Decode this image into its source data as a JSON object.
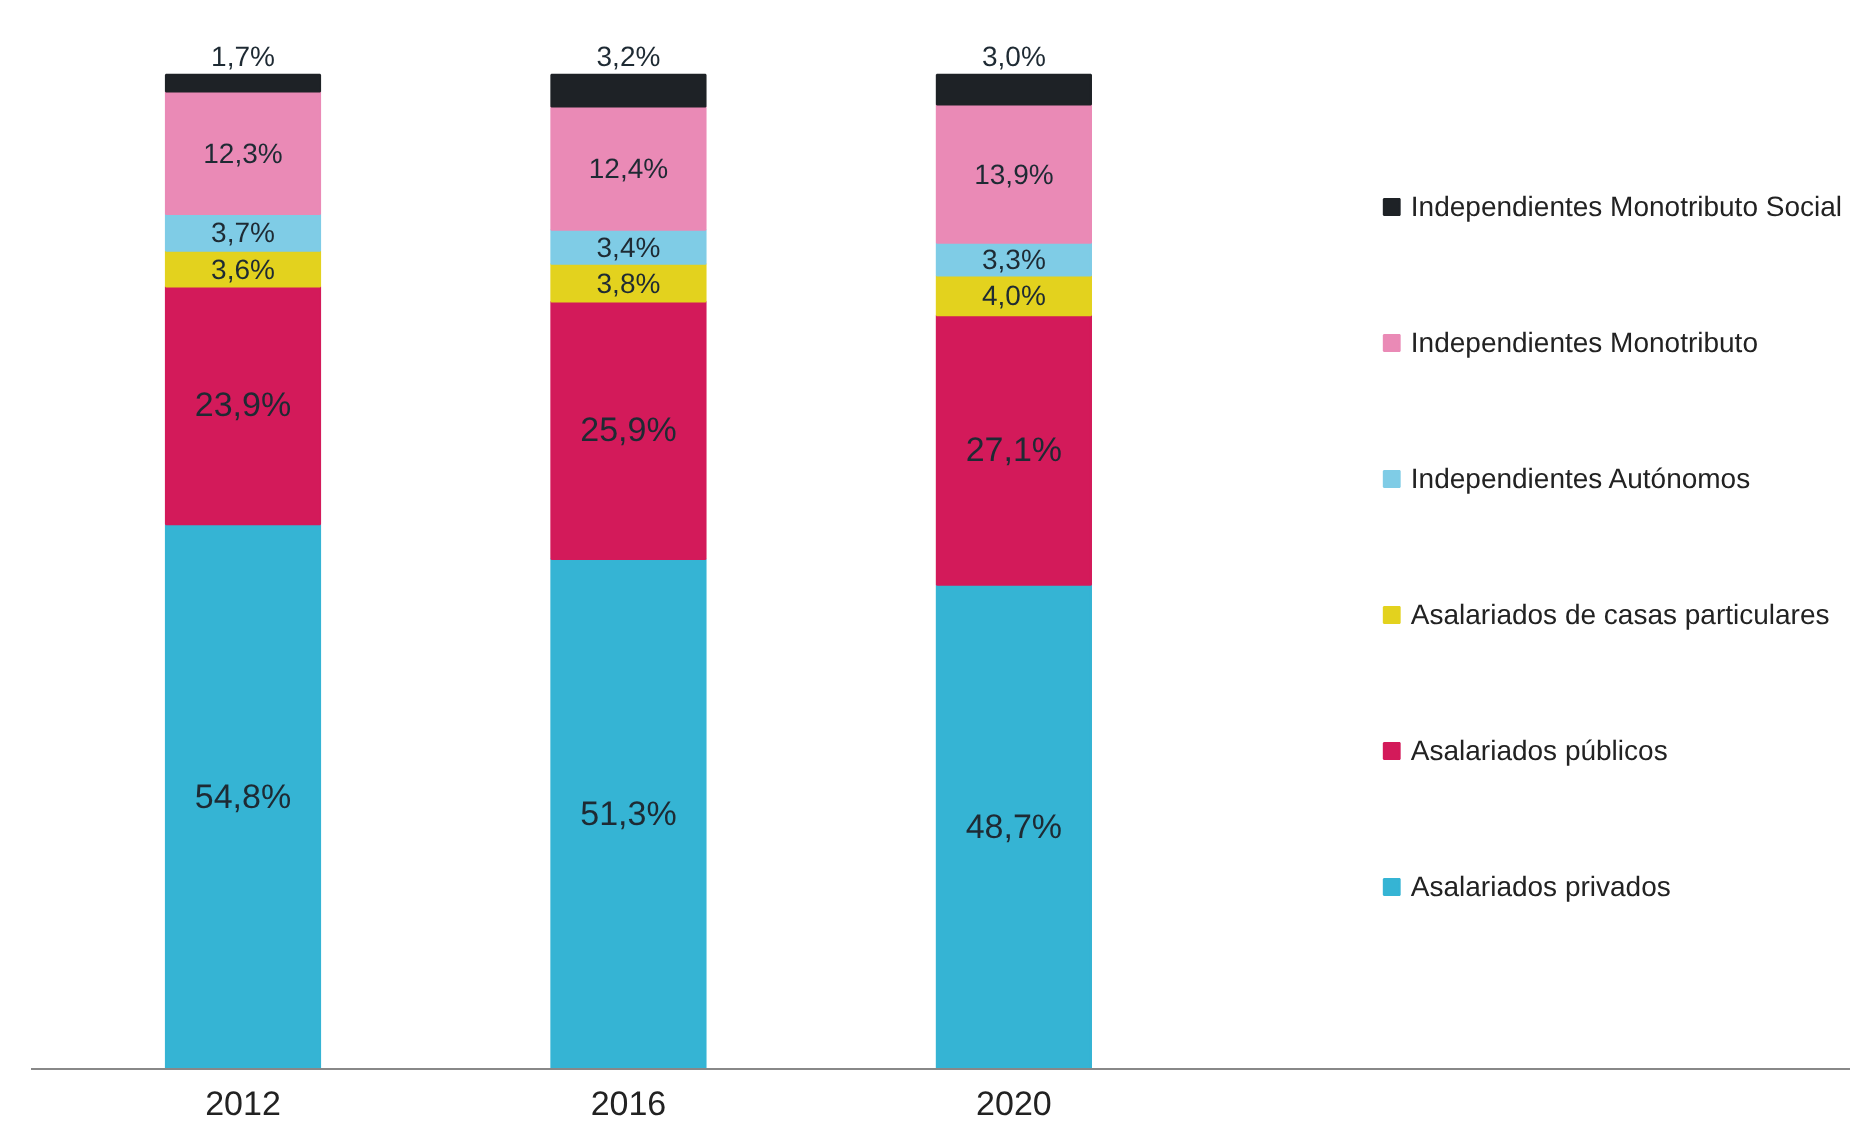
{
  "chart_data": {
    "type": "bar",
    "stacked": true,
    "legend": "right",
    "categories": [
      "2012",
      "2016",
      "2020"
    ],
    "series": [
      {
        "name": "Asalariados privados",
        "color": "#35b4d4",
        "values": [
          54.8,
          51.3,
          48.7
        ],
        "value_labels": [
          "54,8%",
          "51,3%",
          "48,7%"
        ]
      },
      {
        "name": "Asalariados públicos",
        "color": "#d31a5a",
        "values": [
          23.9,
          25.9,
          27.1
        ],
        "value_labels": [
          "23,9%",
          "25,9%",
          "27,1%"
        ]
      },
      {
        "name": "Asalariados de casas particulares",
        "color": "#e3d21e",
        "values": [
          3.6,
          3.8,
          4.0
        ],
        "value_labels": [
          "3,6%",
          "3,8%",
          "4,0%"
        ]
      },
      {
        "name": "Independientes Autónomos",
        "color": "#7fcce6",
        "values": [
          3.7,
          3.4,
          3.3
        ],
        "value_labels": [
          "3,7%",
          "3,4%",
          "3,3%"
        ]
      },
      {
        "name": "Independientes Monotributo",
        "color": "#ea8ab6",
        "values": [
          12.3,
          12.4,
          13.9
        ],
        "value_labels": [
          "12,3%",
          "12,4%",
          "13,9%"
        ]
      },
      {
        "name": "Independientes Monotributo Social",
        "color": "#1e2226",
        "values": [
          1.7,
          3.2,
          3.0
        ],
        "value_labels": [
          "1,7%",
          "3,2%",
          "3,0%"
        ]
      }
    ]
  }
}
